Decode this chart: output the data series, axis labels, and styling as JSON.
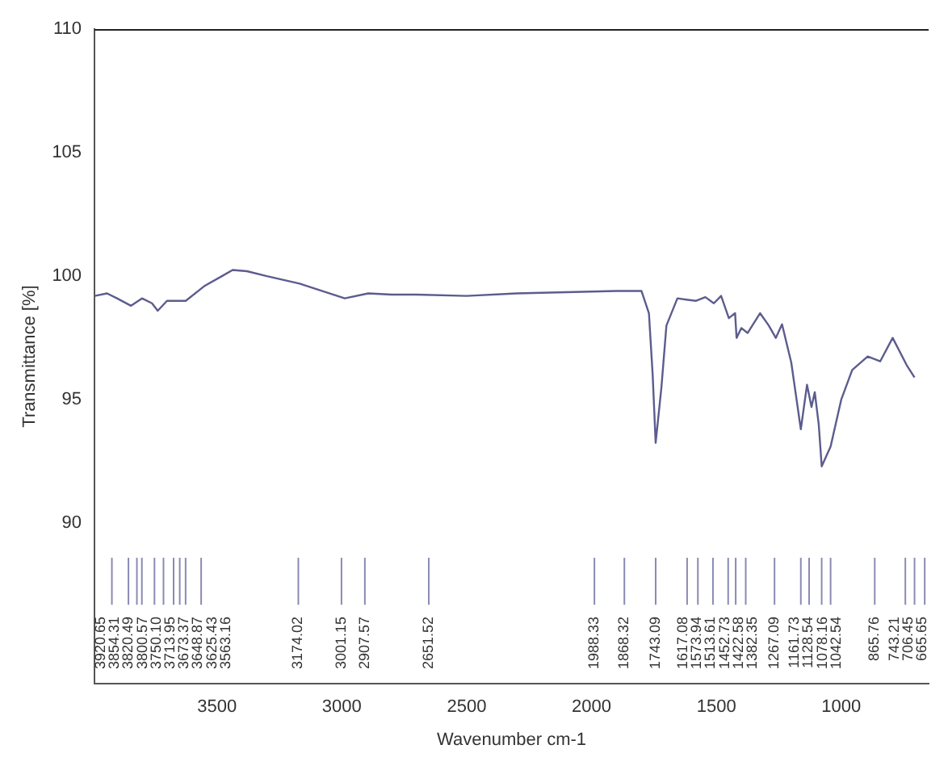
{
  "chart_data": {
    "type": "line",
    "xlabel": "Wavenumber cm-1",
    "ylabel": "Transmittance [%]",
    "x": [
      3990,
      3940,
      3900,
      3844,
      3800,
      3760,
      3737,
      3700,
      3625,
      3550,
      3480,
      3437,
      3380,
      3300,
      3169,
      3080,
      2988,
      2894,
      2800,
      2700,
      2500,
      2300,
      2100,
      1900,
      1800,
      1770,
      1755,
      1743.09,
      1720,
      1700,
      1656,
      1620,
      1581,
      1544,
      1510,
      1481,
      1450,
      1425,
      1419,
      1400,
      1375,
      1325,
      1290,
      1262,
      1237,
      1200,
      1161.73,
      1137,
      1119,
      1106,
      1090,
      1078.16,
      1042.54,
      1000,
      956,
      894,
      844,
      794,
      738,
      706.45
    ],
    "series": [
      {
        "color": "#5c5c8e",
        "values": [
          99.2,
          99.3,
          99.1,
          98.8,
          99.1,
          98.9,
          98.6,
          99.0,
          99.0,
          99.6,
          100.0,
          100.25,
          100.2,
          100.0,
          99.7,
          99.4,
          99.1,
          99.3,
          99.25,
          99.25,
          99.2,
          99.3,
          99.35,
          99.4,
          99.4,
          98.5,
          96.0,
          93.25,
          95.5,
          98.0,
          99.1,
          99.05,
          99.0,
          99.15,
          98.9,
          99.2,
          98.3,
          98.5,
          97.5,
          97.9,
          97.7,
          98.5,
          98.0,
          97.5,
          98.05,
          96.5,
          93.8,
          95.6,
          94.7,
          95.3,
          94.0,
          92.3,
          93.1,
          95.0,
          96.2,
          96.75,
          96.55,
          97.5,
          96.4,
          95.9
        ]
      }
    ],
    "xlim": [
      3990,
      650
    ],
    "ylim": [
      83.5,
      110
    ],
    "xticks": [
      3500,
      3000,
      2500,
      2000,
      1500,
      1000
    ],
    "yticks": [
      90,
      95,
      100,
      105,
      110
    ],
    "grid": false,
    "legend": false,
    "ref_lines": [
      {
        "axis": "x",
        "value": 3920.65,
        "label": "3920.65",
        "color": "#8a8ab4"
      },
      {
        "axis": "x",
        "value": 3854.31,
        "label": "3854.31",
        "color": "#8a8ab4"
      },
      {
        "axis": "x",
        "value": 3820.49,
        "label": "3820.49",
        "color": "#8a8ab4"
      },
      {
        "axis": "x",
        "value": 3800.57,
        "label": "3800.57",
        "color": "#8a8ab4"
      },
      {
        "axis": "x",
        "value": 3750.1,
        "label": "3750.10",
        "color": "#8a8ab4"
      },
      {
        "axis": "x",
        "value": 3713.95,
        "label": "3713.95",
        "color": "#8a8ab4"
      },
      {
        "axis": "x",
        "value": 3673.37,
        "label": "3673.37",
        "color": "#8a8ab4"
      },
      {
        "axis": "x",
        "value": 3648.87,
        "label": "3648.87",
        "color": "#8a8ab4"
      },
      {
        "axis": "x",
        "value": 3625.43,
        "label": "3625.43",
        "color": "#8a8ab4"
      },
      {
        "axis": "x",
        "value": 3563.16,
        "label": "3563.16",
        "color": "#8a8ab4"
      },
      {
        "axis": "x",
        "value": 3174.02,
        "label": "3174.02",
        "color": "#8a8ab4"
      },
      {
        "axis": "x",
        "value": 3001.15,
        "label": "3001.15",
        "color": "#8a8ab4"
      },
      {
        "axis": "x",
        "value": 2907.57,
        "label": "2907.57",
        "color": "#8a8ab4"
      },
      {
        "axis": "x",
        "value": 2651.52,
        "label": "2651.52",
        "color": "#8a8ab4"
      },
      {
        "axis": "x",
        "value": 1988.33,
        "label": "1988.33",
        "color": "#8a8ab4"
      },
      {
        "axis": "x",
        "value": 1868.32,
        "label": "1868.32",
        "color": "#8a8ab4"
      },
      {
        "axis": "x",
        "value": 1743.09,
        "label": "1743.09",
        "color": "#8a8ab4"
      },
      {
        "axis": "x",
        "value": 1617.08,
        "label": "1617.08",
        "color": "#8a8ab4"
      },
      {
        "axis": "x",
        "value": 1573.94,
        "label": "1573.94",
        "color": "#8a8ab4"
      },
      {
        "axis": "x",
        "value": 1513.61,
        "label": "1513.61",
        "color": "#8a8ab4"
      },
      {
        "axis": "x",
        "value": 1452.73,
        "label": "1452.73",
        "color": "#8a8ab4"
      },
      {
        "axis": "x",
        "value": 1422.58,
        "label": "1422.58",
        "color": "#8a8ab4"
      },
      {
        "axis": "x",
        "value": 1382.35,
        "label": "1382.35",
        "color": "#8a8ab4"
      },
      {
        "axis": "x",
        "value": 1267.09,
        "label": "1267.09",
        "color": "#8a8ab4"
      },
      {
        "axis": "x",
        "value": 1161.73,
        "label": "1161.73",
        "color": "#8a8ab4"
      },
      {
        "axis": "x",
        "value": 1128.54,
        "label": "1128.54",
        "color": "#8a8ab4"
      },
      {
        "axis": "x",
        "value": 1078.16,
        "label": "1078.16",
        "color": "#8a8ab4"
      },
      {
        "axis": "x",
        "value": 1042.54,
        "label": "1042.54",
        "color": "#8a8ab4"
      },
      {
        "axis": "x",
        "value": 865.76,
        "label": "865.76",
        "color": "#8a8ab4"
      },
      {
        "axis": "x",
        "value": 743.21,
        "label": "743.21",
        "color": "#8a8ab4"
      },
      {
        "axis": "x",
        "value": 706.45,
        "label": "706.45",
        "color": "#8a8ab4"
      },
      {
        "axis": "x",
        "value": 665.65,
        "label": "665.65",
        "color": "#8a8ab4"
      }
    ]
  }
}
